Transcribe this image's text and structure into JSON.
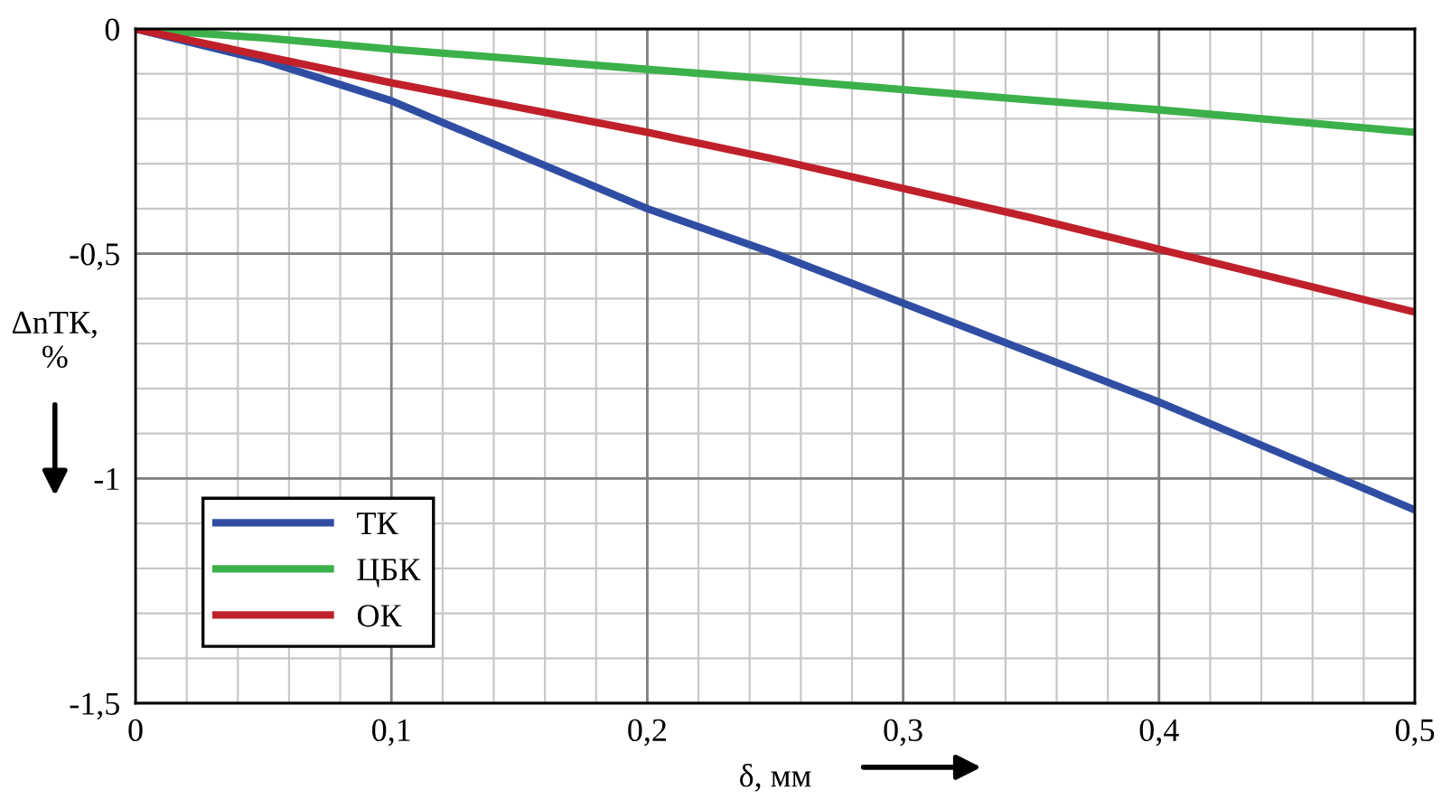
{
  "chart_data": {
    "type": "line",
    "xlabel": "δ, мм",
    "ylabel": "ΔnТК,\n%",
    "x": [
      0,
      0.05,
      0.1,
      0.15,
      0.2,
      0.25,
      0.3,
      0.35,
      0.4,
      0.45,
      0.5
    ],
    "series": [
      {
        "name": "ТК",
        "color": "#2f4ea3",
        "values": [
          0,
          -0.07,
          -0.16,
          -0.28,
          -0.4,
          -0.5,
          -0.61,
          -0.72,
          -0.83,
          -0.95,
          -1.07
        ]
      },
      {
        "name": "ЦБК",
        "color": "#3cb04a",
        "values": [
          0,
          -0.02,
          -0.045,
          -0.067,
          -0.09,
          -0.112,
          -0.135,
          -0.158,
          -0.18,
          -0.205,
          -0.23
        ]
      },
      {
        "name": "ОК",
        "color": "#c0202a",
        "values": [
          0,
          -0.06,
          -0.12,
          -0.175,
          -0.23,
          -0.29,
          -0.355,
          -0.42,
          -0.49,
          -0.56,
          -0.63
        ]
      }
    ],
    "xlim": [
      0,
      0.5
    ],
    "ylim": [
      -1.5,
      0
    ],
    "xticks": [
      0,
      {
        "value": 0.1,
        "label": "0,1"
      },
      {
        "value": 0.2,
        "label": "0,2"
      },
      {
        "value": 0.3,
        "label": "0,3"
      },
      {
        "value": 0.4,
        "label": "0,4"
      },
      {
        "value": 0.5,
        "label": "0,5"
      }
    ],
    "yticks": [
      {
        "value": -1.5,
        "label": "-1,5"
      },
      -1,
      {
        "value": -0.5,
        "label": "-0,5"
      },
      0
    ],
    "grid": true,
    "legend": "bottom left",
    "marker": "none",
    "line_style": "solid"
  }
}
